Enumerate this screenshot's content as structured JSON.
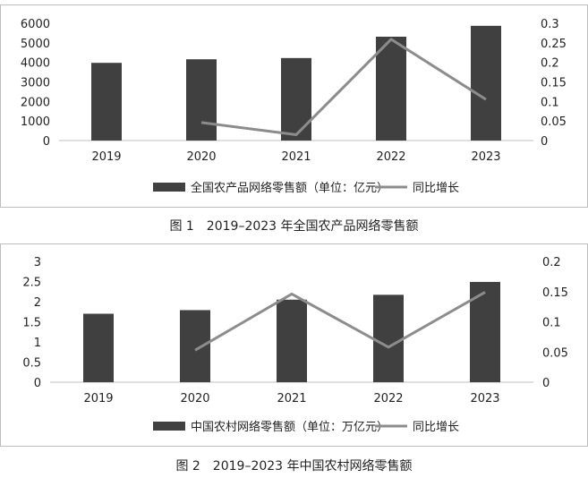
{
  "chart_data": [
    {
      "type": "bar",
      "title": "",
      "caption": "图 1　2019–2023 年全国农产品网络零售额",
      "categories": [
        "2019",
        "2020",
        "2021",
        "2022",
        "2023"
      ],
      "series": [
        {
          "name": "全国农产品网络零售额（单位：亿元）",
          "type": "bar",
          "axis": "left",
          "values": [
            3975,
            4158,
            4221,
            5313,
            5870
          ],
          "color": "#404040"
        },
        {
          "name": "同比增长",
          "type": "line",
          "axis": "right",
          "values": [
            null,
            0.046,
            0.015,
            0.259,
            0.105
          ],
          "color": "#8c8c8c"
        }
      ],
      "y_left": {
        "min": 0,
        "max": 6000,
        "ticks": [
          "0",
          "1000",
          "2000",
          "3000",
          "4000",
          "5000",
          "6000"
        ]
      },
      "y_right": {
        "min": 0,
        "max": 0.3,
        "ticks": [
          "0",
          "0.05",
          "0.1",
          "0.15",
          "0.2",
          "0.25",
          "0.3"
        ]
      },
      "grid": false,
      "legend": "bottom"
    },
    {
      "type": "bar",
      "title": "",
      "caption": "图 2　2019–2023 年中国农村网络零售额",
      "categories": [
        "2019",
        "2020",
        "2021",
        "2022",
        "2023"
      ],
      "series": [
        {
          "name": "中国农村网络零售额（单位：万亿元）",
          "type": "bar",
          "axis": "left",
          "values": [
            1.7,
            1.79,
            2.05,
            2.17,
            2.49
          ],
          "color": "#404040"
        },
        {
          "name": "同比增长",
          "type": "line",
          "axis": "right",
          "values": [
            null,
            0.053,
            0.146,
            0.058,
            0.149
          ],
          "color": "#8c8c8c"
        }
      ],
      "y_left": {
        "min": 0,
        "max": 3,
        "ticks": [
          "0",
          "0.5",
          "1",
          "1.5",
          "2",
          "2.5",
          "3"
        ]
      },
      "y_right": {
        "min": 0,
        "max": 0.2,
        "ticks": [
          "0",
          "0.05",
          "0.1",
          "0.15",
          "0.2"
        ]
      },
      "grid": false,
      "legend": "bottom"
    }
  ]
}
